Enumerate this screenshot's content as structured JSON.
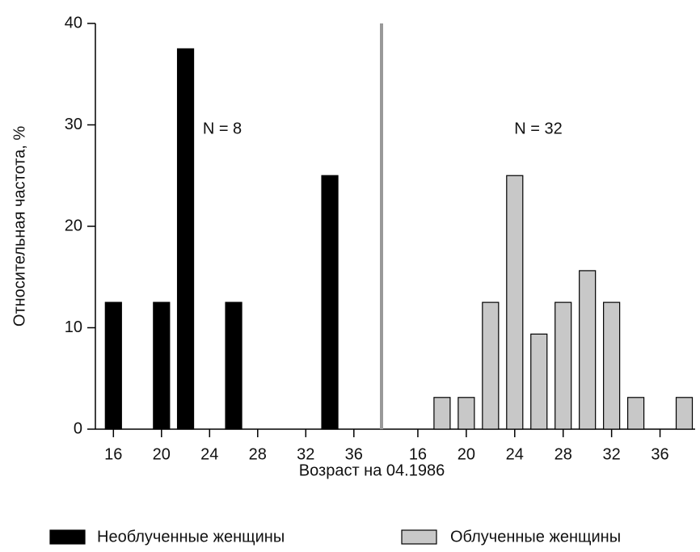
{
  "chart_data": {
    "type": "bar",
    "ylabel": "Относительная частота, %",
    "xlabel": "Возраст на 04.1986",
    "ylim": [
      0,
      40
    ],
    "yticks": [
      0,
      10,
      20,
      30,
      40
    ],
    "series": [
      {
        "name": "Необлученные женщины",
        "color": "#000000",
        "annotation": "N = 8",
        "xlim": [
          14.5,
          38.3
        ],
        "xticks": [
          16,
          20,
          24,
          28,
          32,
          36
        ],
        "x": [
          16,
          20,
          22,
          26,
          34
        ],
        "values": [
          12.5,
          12.5,
          37.5,
          12.5,
          25
        ]
      },
      {
        "name": "Облученные женщины",
        "color": "#c8c8c8",
        "annotation": "N = 32",
        "xlim": [
          13,
          38.9
        ],
        "xticks": [
          16,
          20,
          24,
          28,
          32,
          36
        ],
        "x": [
          18,
          20,
          22,
          24,
          26,
          28,
          30,
          32,
          34,
          38
        ],
        "values": [
          3.125,
          3.125,
          12.5,
          25,
          9.375,
          12.5,
          15.625,
          12.5,
          3.125,
          3.125
        ]
      }
    ]
  }
}
